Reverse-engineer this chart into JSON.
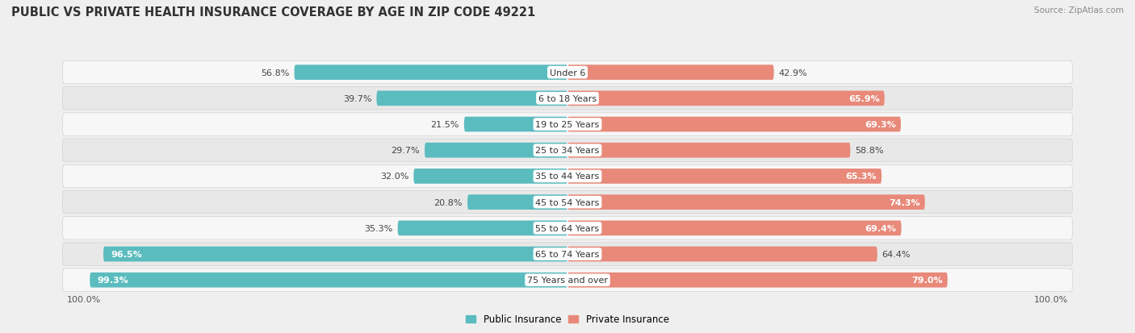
{
  "title": "PUBLIC VS PRIVATE HEALTH INSURANCE COVERAGE BY AGE IN ZIP CODE 49221",
  "source": "Source: ZipAtlas.com",
  "categories": [
    "Under 6",
    "6 to 18 Years",
    "19 to 25 Years",
    "25 to 34 Years",
    "35 to 44 Years",
    "45 to 54 Years",
    "55 to 64 Years",
    "65 to 74 Years",
    "75 Years and over"
  ],
  "public_values": [
    56.8,
    39.7,
    21.5,
    29.7,
    32.0,
    20.8,
    35.3,
    96.5,
    99.3
  ],
  "private_values": [
    42.9,
    65.9,
    69.3,
    58.8,
    65.3,
    74.3,
    69.4,
    64.4,
    79.0
  ],
  "public_color": "#5bbcbf",
  "private_color": "#e8897a",
  "background_color": "#efefef",
  "row_colors": [
    "#f7f7f7",
    "#e8e8e8"
  ],
  "title_fontsize": 10.5,
  "label_fontsize": 8,
  "value_fontsize": 8,
  "legend_fontsize": 8.5,
  "bar_height": 0.58,
  "figsize": [
    14.06,
    4.14
  ]
}
